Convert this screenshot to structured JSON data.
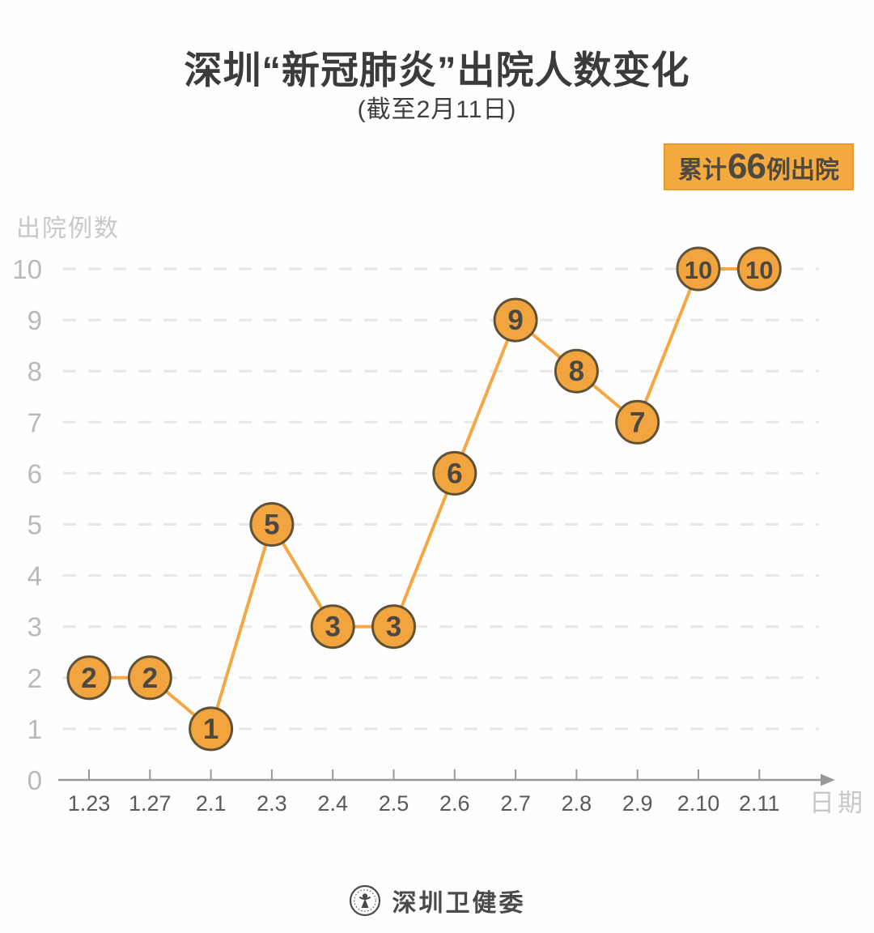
{
  "header": {
    "title": "深圳“新冠肺炎”出院人数变化",
    "subtitle": "(截至2月11日)"
  },
  "badge": {
    "prefix": "累计",
    "number": "66",
    "suffix": "例出院",
    "bg_color": "#f5aa3f",
    "text_color": "#4f4a40"
  },
  "chart_data": {
    "type": "line",
    "x": [
      "1.23",
      "1.27",
      "2.1",
      "2.3",
      "2.4",
      "2.5",
      "2.6",
      "2.7",
      "2.8",
      "2.9",
      "2.10",
      "2.11"
    ],
    "values": [
      2,
      2,
      1,
      5,
      3,
      3,
      6,
      9,
      8,
      7,
      10,
      10
    ],
    "title": "深圳“新冠肺炎”出院人数变化 (截至2月11日)",
    "xlabel": "日期",
    "ylabel": "出院例数",
    "ylim": [
      0,
      10
    ],
    "yticks": [
      0,
      1,
      2,
      3,
      4,
      5,
      6,
      7,
      8,
      9,
      10
    ],
    "grid": "horizontal-dashed",
    "legend": "none",
    "annotation_total": "累计66例出院",
    "colors": {
      "line": "#f4a742",
      "marker_fill": "#f2a43e",
      "marker_border": "#5f5236",
      "marker_text": "#4c4842",
      "grid": "#e8e8e8",
      "axis": "#999999",
      "x_tick_text": "#5a5a5a",
      "y_tick_text": "#b9b9b9",
      "axis_title_text": "#c8c8c8"
    }
  },
  "footer": {
    "logo": "shenzhen-health-commission-emblem",
    "name": "深圳卫健委"
  }
}
